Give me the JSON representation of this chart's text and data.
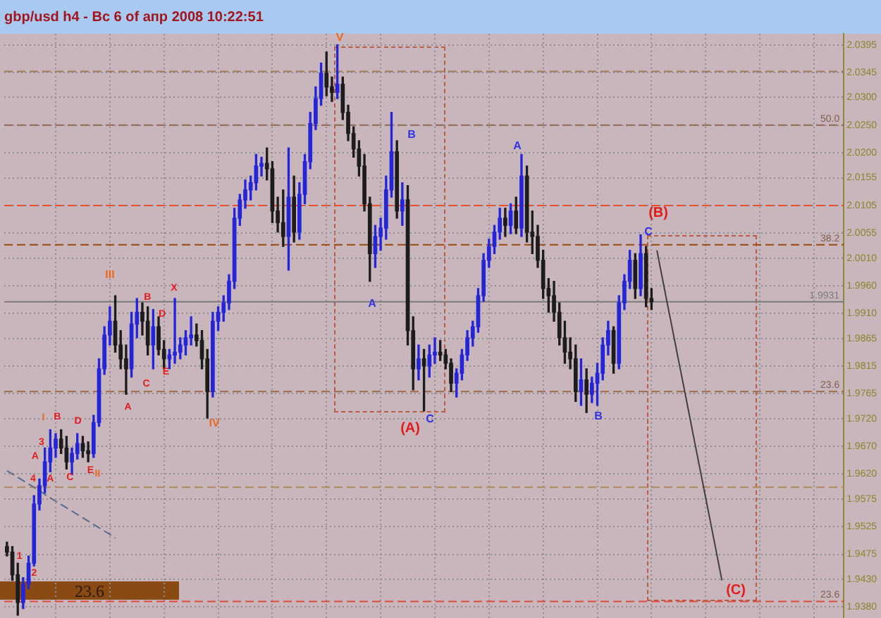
{
  "chart_data": {
    "type": "candlestick",
    "title": "gbp/usd h4 - Вс 6 of апр 2008 10:22:51",
    "categories": [
      null,
      null,
      null,
      null,
      null,
      null,
      null,
      null,
      null,
      null,
      null,
      null,
      null,
      null,
      null,
      null,
      null,
      null,
      null,
      null,
      null,
      null,
      null,
      null,
      null,
      null,
      null,
      null,
      null,
      null,
      null,
      null,
      null,
      null,
      null,
      null,
      null,
      null,
      null,
      null,
      null,
      null,
      null,
      null,
      null,
      null,
      null,
      null,
      null,
      null,
      null,
      null,
      null,
      null,
      null,
      null,
      null,
      null,
      null,
      null,
      null,
      null,
      null,
      null,
      null,
      null,
      null,
      null,
      null,
      null,
      null,
      null,
      null,
      null,
      null,
      null,
      null,
      null,
      null,
      null,
      null,
      null,
      null,
      null,
      null,
      null,
      null,
      null,
      null,
      null,
      null,
      null,
      null,
      null,
      null,
      null,
      null,
      null,
      null,
      null,
      null,
      null,
      null,
      null,
      null,
      null,
      null,
      null,
      null,
      null,
      null,
      null,
      null,
      null,
      null,
      null,
      null,
      null,
      null,
      null,
      null,
      null,
      null,
      null,
      null,
      null,
      null,
      null,
      null,
      null,
      null,
      null,
      null,
      null,
      null,
      null,
      null,
      null,
      null,
      null,
      null,
      null,
      null,
      null,
      null,
      null,
      null,
      null,
      null,
      null,
      null,
      null,
      null,
      null,
      null
    ],
    "ohlc": [
      [
        1.9489,
        1.9497,
        1.9472,
        1.9479
      ],
      [
        1.9479,
        1.9489,
        1.9428,
        1.9438
      ],
      [
        1.9438,
        1.9459,
        1.9365,
        1.9388
      ],
      [
        1.9388,
        1.9433,
        1.9377,
        1.9421
      ],
      [
        1.9421,
        1.9472,
        1.9413,
        1.9459
      ],
      [
        1.9459,
        1.9581,
        1.9454,
        1.9566
      ],
      [
        1.9566,
        1.9611,
        1.9555,
        1.9599
      ],
      [
        1.9599,
        1.9667,
        1.9586,
        1.9642
      ],
      [
        1.9642,
        1.97,
        1.9624,
        1.9667
      ],
      [
        1.9667,
        1.9693,
        1.965,
        1.9683
      ],
      [
        1.9683,
        1.97,
        1.9657,
        1.9667
      ],
      [
        1.9667,
        1.9688,
        1.9629,
        1.9642
      ],
      [
        1.9642,
        1.9667,
        1.9619,
        1.9657
      ],
      [
        1.9657,
        1.9693,
        1.9647,
        1.9675
      ],
      [
        1.9675,
        1.9688,
        1.965,
        1.9662
      ],
      [
        1.9662,
        1.9678,
        1.9642,
        1.9657
      ],
      [
        1.9657,
        1.9726,
        1.965,
        1.9713
      ],
      [
        1.9713,
        1.9828,
        1.9706,
        1.981
      ],
      [
        1.981,
        1.9886,
        1.98,
        1.9871
      ],
      [
        1.9871,
        1.9922,
        1.9853,
        1.9896
      ],
      [
        1.9896,
        1.9942,
        1.984,
        1.9853
      ],
      [
        1.9853,
        1.9879,
        1.981,
        1.9828
      ],
      [
        1.9828,
        1.9853,
        1.9764,
        1.981
      ],
      [
        1.981,
        1.9912,
        1.9795,
        1.9891
      ],
      [
        1.9891,
        1.9937,
        1.9866,
        1.9912
      ],
      [
        1.9912,
        1.9929,
        1.9871,
        1.9896
      ],
      [
        1.9896,
        1.9922,
        1.9835,
        1.9853
      ],
      [
        1.9853,
        1.9917,
        1.981,
        1.9886
      ],
      [
        1.9886,
        1.9904,
        1.9835,
        1.9845
      ],
      [
        1.9845,
        1.9861,
        1.981,
        1.9828
      ],
      [
        1.9828,
        1.9845,
        1.981,
        1.9835
      ],
      [
        1.9835,
        1.9937,
        1.982,
        1.984
      ],
      [
        1.984,
        1.9866,
        1.9828,
        1.9853
      ],
      [
        1.9853,
        1.9879,
        1.9835,
        1.9866
      ],
      [
        1.9866,
        1.9904,
        1.9853,
        1.9871
      ],
      [
        1.9871,
        1.9891,
        1.9851,
        1.9861
      ],
      [
        1.9861,
        1.9879,
        1.981,
        1.9828
      ],
      [
        1.9828,
        1.9845,
        1.9721,
        1.9769
      ],
      [
        1.9769,
        1.9912,
        1.9759,
        1.9896
      ],
      [
        1.9896,
        1.9922,
        1.9879,
        1.9912
      ],
      [
        1.9912,
        1.9942,
        1.9896,
        1.9929
      ],
      [
        1.9929,
        1.998,
        1.9917,
        1.9968
      ],
      [
        1.9968,
        2.01,
        1.9955,
        2.0082
      ],
      [
        2.0082,
        2.0125,
        2.0069,
        2.0115
      ],
      [
        2.0115,
        2.0151,
        2.01,
        2.0133
      ],
      [
        2.0133,
        2.0158,
        2.0115,
        2.0146
      ],
      [
        2.0146,
        2.0197,
        2.0133,
        2.0176
      ],
      [
        2.0176,
        2.0192,
        2.0158,
        2.0181
      ],
      [
        2.0181,
        2.0209,
        2.0151,
        2.0171
      ],
      [
        2.0171,
        2.0184,
        2.0074,
        2.0095
      ],
      [
        2.0095,
        2.012,
        2.0057,
        2.0074
      ],
      [
        2.0074,
        2.0133,
        2.0031,
        2.0049
      ],
      [
        2.0049,
        2.0209,
        1.9988,
        2.012
      ],
      [
        2.012,
        2.0158,
        2.0039,
        2.0057
      ],
      [
        2.0057,
        2.0146,
        2.0044,
        2.0125
      ],
      [
        2.0125,
        2.0197,
        2.0108,
        2.0184
      ],
      [
        2.0184,
        2.0273,
        2.0171,
        2.0253
      ],
      [
        2.0253,
        2.0319,
        2.0242,
        2.0298
      ],
      [
        2.0298,
        2.0362,
        2.0286,
        2.0344
      ],
      [
        2.0344,
        2.0382,
        2.0303,
        2.0319
      ],
      [
        2.0319,
        2.0337,
        2.0293,
        2.0309
      ],
      [
        2.0309,
        2.0395,
        2.0298,
        2.0324
      ],
      [
        2.0324,
        2.0337,
        2.026,
        2.0273
      ],
      [
        2.0273,
        2.0286,
        2.0222,
        2.0235
      ],
      [
        2.0235,
        2.0247,
        2.0192,
        2.0207
      ],
      [
        2.0207,
        2.0222,
        2.0158,
        2.0176
      ],
      [
        2.0176,
        2.0197,
        2.0095,
        2.0108
      ],
      [
        2.0108,
        2.012,
        1.9968,
        2.0018
      ],
      [
        2.0018,
        2.0069,
        1.9993,
        2.0049
      ],
      [
        2.0049,
        2.0082,
        2.0024,
        2.0064
      ],
      [
        2.0064,
        2.0158,
        2.0044,
        2.0133
      ],
      [
        2.0133,
        2.0273,
        2.012,
        2.0202
      ],
      [
        2.0202,
        2.0222,
        2.0082,
        2.0095
      ],
      [
        2.0095,
        2.0146,
        2.0069,
        2.0115
      ],
      [
        2.0115,
        2.0141,
        1.9853,
        1.9879
      ],
      [
        1.9879,
        1.9904,
        1.9772,
        1.981
      ],
      [
        1.981,
        1.9853,
        1.979,
        1.9828
      ],
      [
        1.9828,
        1.9845,
        1.9734,
        1.9815
      ],
      [
        1.9815,
        1.9853,
        1.9795,
        1.9835
      ],
      [
        1.9835,
        1.9866,
        1.982,
        1.984
      ],
      [
        1.984,
        1.9861,
        1.9825,
        1.9835
      ],
      [
        1.9835,
        1.9845,
        1.981,
        1.982
      ],
      [
        1.982,
        1.9828,
        1.9769,
        1.9784
      ],
      [
        1.9784,
        1.981,
        1.9759,
        1.9802
      ],
      [
        1.9802,
        1.9845,
        1.979,
        1.9835
      ],
      [
        1.9835,
        1.9879,
        1.9825,
        1.9866
      ],
      [
        1.9866,
        1.9896,
        1.9851,
        1.9886
      ],
      [
        1.9886,
        1.9955,
        1.9876,
        1.9942
      ],
      [
        1.9942,
        2.0018,
        1.9932,
        2.0006
      ],
      [
        2.0006,
        2.0044,
        1.9993,
        2.0031
      ],
      [
        2.0031,
        2.0069,
        2.0018,
        2.0057
      ],
      [
        2.0057,
        2.01,
        2.0044,
        2.0082
      ],
      [
        2.0082,
        2.01,
        2.0049,
        2.0069
      ],
      [
        2.0069,
        2.0108,
        2.0054,
        2.0095
      ],
      [
        2.0095,
        2.012,
        2.0054,
        2.0064
      ],
      [
        2.0064,
        2.0197,
        2.0049,
        2.0158
      ],
      [
        2.0158,
        2.0176,
        2.0039,
        2.0057
      ],
      [
        2.0057,
        2.0095,
        2.0018,
        2.0049
      ],
      [
        2.0049,
        2.0069,
        1.9993,
        2.0006
      ],
      [
        2.0006,
        2.0024,
        1.9937,
        1.9955
      ],
      [
        1.9955,
        1.9973,
        1.9912,
        1.9942
      ],
      [
        1.9942,
        1.9968,
        1.9896,
        1.9912
      ],
      [
        1.9912,
        1.9929,
        1.9853,
        1.9866
      ],
      [
        1.9866,
        1.9896,
        1.982,
        1.984
      ],
      [
        1.984,
        1.9866,
        1.981,
        1.9828
      ],
      [
        1.9828,
        1.9853,
        1.9751,
        1.9769
      ],
      [
        1.9769,
        1.9828,
        1.9744,
        1.979
      ],
      [
        1.979,
        1.981,
        1.9731,
        1.9764
      ],
      [
        1.9764,
        1.9795,
        1.9749,
        1.9784
      ],
      [
        1.9784,
        1.982,
        1.9744,
        1.9802
      ],
      [
        1.9802,
        1.9866,
        1.979,
        1.9853
      ],
      [
        1.9853,
        1.9896,
        1.9835,
        1.9879
      ],
      [
        1.9879,
        1.9886,
        1.9802,
        1.982
      ],
      [
        1.982,
        1.9942,
        1.981,
        1.9929
      ],
      [
        1.9929,
        1.998,
        1.9917,
        1.9968
      ],
      [
        1.9968,
        2.0024,
        1.9955,
        2.0006
      ],
      [
        2.0006,
        2.0018,
        1.9937,
        1.9955
      ],
      [
        1.9955,
        2.0052,
        1.9942,
        2.0018
      ],
      [
        2.0018,
        2.0031,
        1.9922,
        1.9937
      ],
      [
        1.9937,
        1.9955,
        1.9917,
        1.9931
      ],
      null,
      null,
      null,
      null,
      null,
      null,
      null,
      null,
      null,
      null,
      null,
      null,
      null,
      null,
      null,
      null,
      null,
      null,
      null,
      null,
      null,
      null,
      null,
      null,
      null,
      null,
      null,
      null,
      null,
      null,
      null,
      null,
      null,
      null,
      null
    ],
    "colors": [
      "#1c1c1c",
      "#1c1c1c",
      "#1c1c1c",
      "#2424d8",
      "#2424d8",
      "#2424d8",
      "#2424d8",
      "#2424d8",
      "#2424d8",
      "#2424d8",
      "#1c1c1c",
      "#1c1c1c",
      "#2424d8",
      "#2424d8",
      "#1c1c1c",
      "#1c1c1c",
      "#2424d8",
      "#2424d8",
      "#2424d8",
      "#2424d8",
      "#1c1c1c",
      "#1c1c1c",
      "#1c1c1c",
      "#2424d8",
      "#2424d8",
      "#1c1c1c",
      "#1c1c1c",
      "#2424d8",
      "#1c1c1c",
      "#1c1c1c",
      "#2424d8",
      "#2424d8",
      "#2424d8",
      "#2424d8",
      "#2424d8",
      "#1c1c1c",
      "#1c1c1c",
      "#1c1c1c",
      "#2424d8",
      "#2424d8",
      "#2424d8",
      "#2424d8",
      "#2424d8",
      "#2424d8",
      "#2424d8",
      "#2424d8",
      "#2424d8",
      "#2424d8",
      "#1c1c1c",
      "#1c1c1c",
      "#1c1c1c",
      "#1c1c1c",
      "#2424d8",
      "#1c1c1c",
      "#2424d8",
      "#2424d8",
      "#2424d8",
      "#2424d8",
      "#2424d8",
      "#1c1c1c",
      "#1c1c1c",
      "#2424d8",
      "#1c1c1c",
      "#1c1c1c",
      "#1c1c1c",
      "#1c1c1c",
      "#1c1c1c",
      "#1c1c1c",
      "#2424d8",
      "#2424d8",
      "#2424d8",
      "#2424d8",
      "#1c1c1c",
      "#2424d8",
      "#1c1c1c",
      "#1c1c1c",
      "#2424d8",
      "#1c1c1c",
      "#2424d8",
      "#2424d8",
      "#1c1c1c",
      "#1c1c1c",
      "#1c1c1c",
      "#2424d8",
      "#2424d8",
      "#2424d8",
      "#2424d8",
      "#2424d8",
      "#2424d8",
      "#2424d8",
      "#2424d8",
      "#2424d8",
      "#1c1c1c",
      "#2424d8",
      "#1c1c1c",
      "#2424d8",
      "#1c1c1c",
      "#1c1c1c",
      "#1c1c1c",
      "#1c1c1c",
      "#1c1c1c",
      "#1c1c1c",
      "#1c1c1c",
      "#1c1c1c",
      "#1c1c1c",
      "#1c1c1c",
      "#2424d8",
      "#1c1c1c",
      "#2424d8",
      "#2424d8",
      "#2424d8",
      "#2424d8",
      "#1c1c1c",
      "#2424d8",
      "#2424d8",
      "#2424d8",
      "#1c1c1c",
      "#2424d8",
      "#1c1c1c",
      "#1c1c1c",
      null,
      null,
      null,
      null,
      null,
      null,
      null,
      null,
      null,
      null,
      null,
      null,
      null,
      null,
      null,
      null,
      null,
      null,
      null,
      null,
      null,
      null,
      null,
      null,
      null,
      null,
      null,
      null,
      null,
      null,
      null,
      null,
      null,
      null,
      null
    ],
    "series": [
      {
        "type": "line",
        "color": "#404040",
        "values": [
          null,
          null,
          null,
          null,
          null,
          null,
          null,
          null,
          null,
          null,
          null,
          null,
          null,
          null,
          null,
          null,
          null,
          null,
          null,
          null,
          null,
          null,
          null,
          null,
          null,
          null,
          null,
          null,
          null,
          null,
          null,
          null,
          null,
          null,
          null,
          null,
          null,
          null,
          null,
          null,
          null,
          null,
          null,
          null,
          null,
          null,
          null,
          null,
          null,
          null,
          null,
          null,
          null,
          null,
          null,
          null,
          null,
          null,
          null,
          null,
          null,
          null,
          null,
          null,
          null,
          null,
          null,
          null,
          null,
          null,
          null,
          null,
          null,
          null,
          null,
          null,
          null,
          null,
          null,
          null,
          null,
          null,
          null,
          null,
          null,
          null,
          null,
          null,
          null,
          null,
          null,
          null,
          null,
          null,
          null,
          null,
          null,
          null,
          null,
          null,
          null,
          null,
          null,
          null,
          null,
          null,
          null,
          null,
          null,
          null,
          null,
          null,
          null,
          null,
          null,
          null,
          null,
          null,
          null,
          null,
          2.0024,
          1.9974,
          1.9924,
          1.9875,
          1.9825,
          1.9776,
          1.9726,
          1.9676,
          1.9627,
          1.9577,
          1.9528,
          1.9478,
          1.9428,
          null,
          null,
          null,
          null,
          null,
          null,
          null,
          null,
          null,
          null,
          null,
          null,
          null,
          null,
          null,
          null,
          null,
          null,
          null,
          null,
          null,
          null
        ]
      },
      {
        "type": "line",
        "color": "#5a6a8a",
        "line_style": "dashed",
        "values": [
          1.9626,
          1.962,
          1.9614,
          1.9608,
          1.9602,
          1.9596,
          1.959,
          1.9583,
          1.9577,
          1.9571,
          1.9565,
          1.9559,
          1.9553,
          1.9547,
          1.9541,
          1.9535,
          1.9529,
          1.9523,
          1.9517,
          1.9511,
          1.9504,
          null,
          null,
          null,
          null,
          null,
          null,
          null,
          null,
          null,
          null,
          null,
          null,
          null,
          null,
          null,
          null,
          null,
          null,
          null,
          null,
          null,
          null,
          null,
          null,
          null,
          null,
          null,
          null,
          null,
          null,
          null,
          null,
          null,
          null,
          null,
          null,
          null,
          null,
          null,
          null,
          null,
          null,
          null,
          null,
          null,
          null,
          null,
          null,
          null,
          null,
          null,
          null,
          null,
          null,
          null,
          null,
          null,
          null,
          null,
          null,
          null,
          null,
          null,
          null,
          null,
          null,
          null,
          null,
          null,
          null,
          null,
          null,
          null,
          null,
          null,
          null,
          null,
          null,
          null,
          null,
          null,
          null,
          null,
          null,
          null,
          null,
          null,
          null,
          null,
          null,
          null,
          null,
          null,
          null,
          null,
          null,
          null,
          null,
          null,
          null,
          null,
          null,
          null,
          null,
          null,
          null,
          null,
          null,
          null,
          null,
          null,
          null,
          null,
          null,
          null,
          null,
          null,
          null,
          null,
          null,
          null,
          null,
          null,
          null,
          null,
          null,
          null,
          null,
          null,
          null,
          null,
          null,
          null,
          null
        ]
      }
    ],
    "ylim": [
      1.936,
      2.0415
    ],
    "yticks": [
      2.0395,
      2.0345,
      {
        "value": 2.03,
        "label": "2.0300"
      },
      {
        "value": 2.025,
        "label": "2.0250"
      },
      {
        "value": 2.02,
        "label": "2.0200"
      },
      2.0155,
      2.0105,
      2.0055,
      {
        "value": 2.001,
        "label": "2.0010"
      },
      {
        "value": 1.996,
        "label": "1.9960"
      },
      {
        "value": 1.991,
        "label": "1.9910"
      },
      1.9865,
      1.9815,
      1.9765,
      {
        "value": 1.972,
        "label": "1.9720"
      },
      {
        "value": 1.967,
        "label": "1.9670"
      },
      {
        "value": 1.962,
        "label": "1.9620"
      },
      1.9575,
      1.9525,
      1.9475,
      {
        "value": 1.943,
        "label": "1.9430"
      },
      {
        "value": 1.938,
        "label": "1.9380"
      }
    ],
    "tick_labels": "y",
    "grid": true,
    "ref_lines": [
      {
        "axis": "y",
        "value": 2.0347,
        "color": "#a0785a",
        "line_style": "dashed"
      },
      {
        "axis": "y",
        "value": 2.025,
        "color": "#8f6a52",
        "line_style": "dashed"
      },
      {
        "axis": "y",
        "value": 2.0105,
        "color": "#e8502a",
        "line_style": "dashed"
      },
      {
        "axis": "y",
        "value": 2.0034,
        "color": "#9a4a10",
        "line_style": "dashed"
      },
      {
        "axis": "y",
        "value": 1.9769,
        "color": "#9a6a4a",
        "line_style": "dashed"
      },
      {
        "axis": "y",
        "value": 1.9596,
        "color": "#b08a5a",
        "line_style": "dashed"
      },
      {
        "axis": "y",
        "value": 1.939,
        "color": "#e04a3a",
        "line_style": "dashed"
      },
      {
        "axis": "y",
        "value": 1.9931,
        "label": "1.9931",
        "color": "#7a7a7a"
      }
    ],
    "annotations": [
      "V",
      "B",
      "A",
      "(A)",
      "C",
      "A",
      "(B)",
      "C",
      "B",
      "(C)",
      "III",
      "B",
      "X",
      "D",
      "C",
      "E",
      "A",
      "IV",
      "I",
      "B",
      "D",
      "3",
      "A",
      "4",
      "A",
      "C",
      "E",
      "II",
      "1",
      "2",
      {
        "text": "50.0",
        "y": 2.025
      },
      {
        "text": "38.2",
        "y": 2.0034
      },
      {
        "text": "23.6",
        "y": 1.9769
      },
      {
        "text": "23.6",
        "y": 1.939
      },
      "23.6"
    ]
  }
}
